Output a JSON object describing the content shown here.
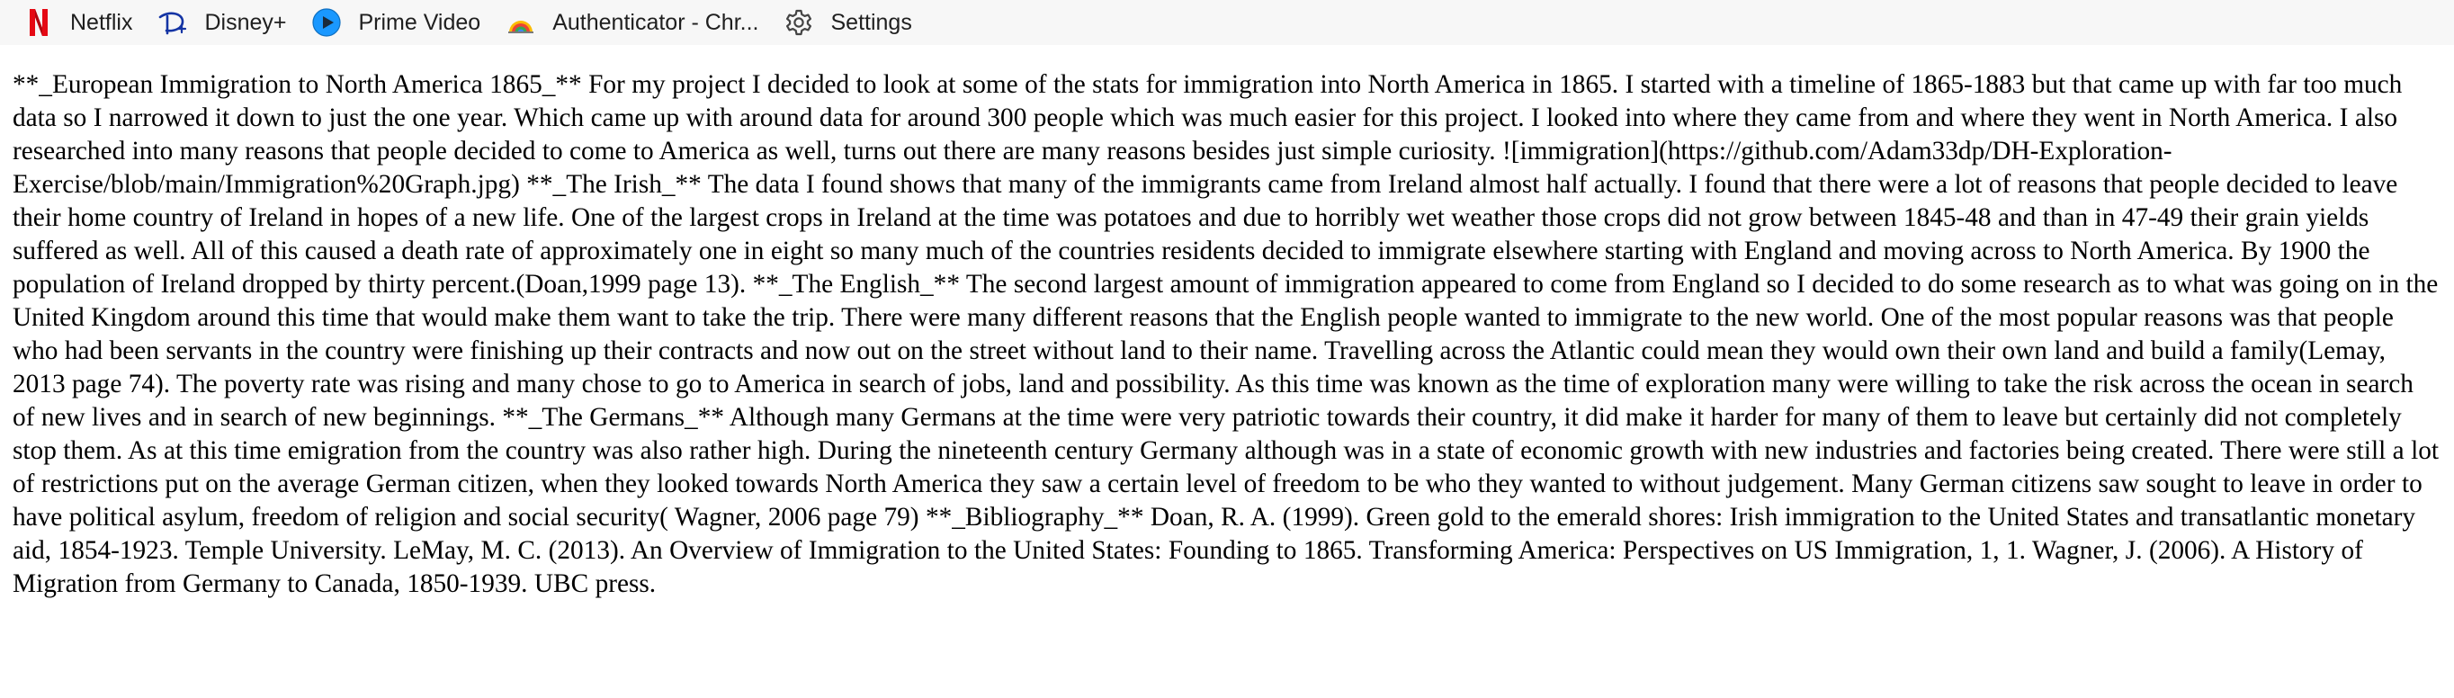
{
  "bookmarks": [
    {
      "label": "Netflix",
      "icon": "netflix-icon",
      "color": "#e50914"
    },
    {
      "label": "Disney+",
      "icon": "disney-plus-icon",
      "color": "#1434a4"
    },
    {
      "label": "Prime Video",
      "icon": "prime-video-icon",
      "color": "#1a98ff"
    },
    {
      "label": "Authenticator - Chr...",
      "icon": "authenticator-icon",
      "color": "#e8710a"
    },
    {
      "label": "Settings",
      "icon": "gear-icon",
      "color": "#444444"
    }
  ],
  "article": {
    "text": "**_European Immigration to North America 1865_** For my project I decided to look at some of the stats for immigration into North America in 1865. I started with a timeline of 1865-1883 but that came up with far too much data so I narrowed it down to just the one year. Which came up with around data for around 300 people which was much easier for this project. I looked into where they came from and where they went in North America. I also researched into many reasons that people decided to come to America as well, turns out there are many reasons besides just simple curiosity. ![immigration](https://github.com/Adam33dp/DH-Exploration-Exercise/blob/main/Immigration%20Graph.jpg) **_The Irish_** The data I found shows that many of the immigrants came from Ireland almost half actually. I found that there were a lot of reasons that people decided to leave their home country of Ireland in hopes of a new life. One of the largest crops in Ireland at the time was potatoes and due to horribly wet weather those crops did not grow between 1845-48 and than in 47-49 their grain yields suffered as well. All of this caused a death rate of approximately one in eight so many much of the countries residents decided to immigrate elsewhere starting with England and moving across to North America. By 1900 the population of Ireland dropped by thirty percent.(Doan,1999 page 13). **_The English_** The second largest amount of immigration appeared to come from England so I decided to do some research as to what was going on in the United Kingdom around this time that would make them want to take the trip. There were many different reasons that the English people wanted to immigrate to the new world. One of the most popular reasons was that people who had been servants in the country were finishing up their contracts and now out on the street without land to their name. Travelling across the Atlantic could mean they would own their own land and build a family(Lemay, 2013 page 74). The poverty rate was rising and many chose to go to America in search of jobs, land and possibility. As this time was known as the time of exploration many were willing to take the risk across the ocean in search of new lives and in search of new beginnings. **_The Germans_** Although many Germans at the time were very patriotic towards their country, it did make it harder for many of them to leave but certainly did not completely stop them. As at this time emigration from the country was also rather high. During the nineteenth century Germany although was in a state of economic growth with new industries and factories being created. There were still a lot of restrictions put on the average German citizen, when they looked towards North America they saw a certain level of freedom to be who they wanted to without judgement. Many German citizens saw sought to leave in order to have political asylum, freedom of religion and social security( Wagner, 2006 page 79) **_Bibliography_** Doan, R. A. (1999). Green gold to the emerald shores: Irish immigration to the United States and transatlantic monetary aid, 1854-1923. Temple University. LeMay, M. C. (2013). An Overview of Immigration to the United States: Founding to 1865. Transforming America: Perspectives on US Immigration, 1, 1. Wagner, J. (2006). A History of Migration from Germany to Canada, 1850-1939. UBC press."
  }
}
